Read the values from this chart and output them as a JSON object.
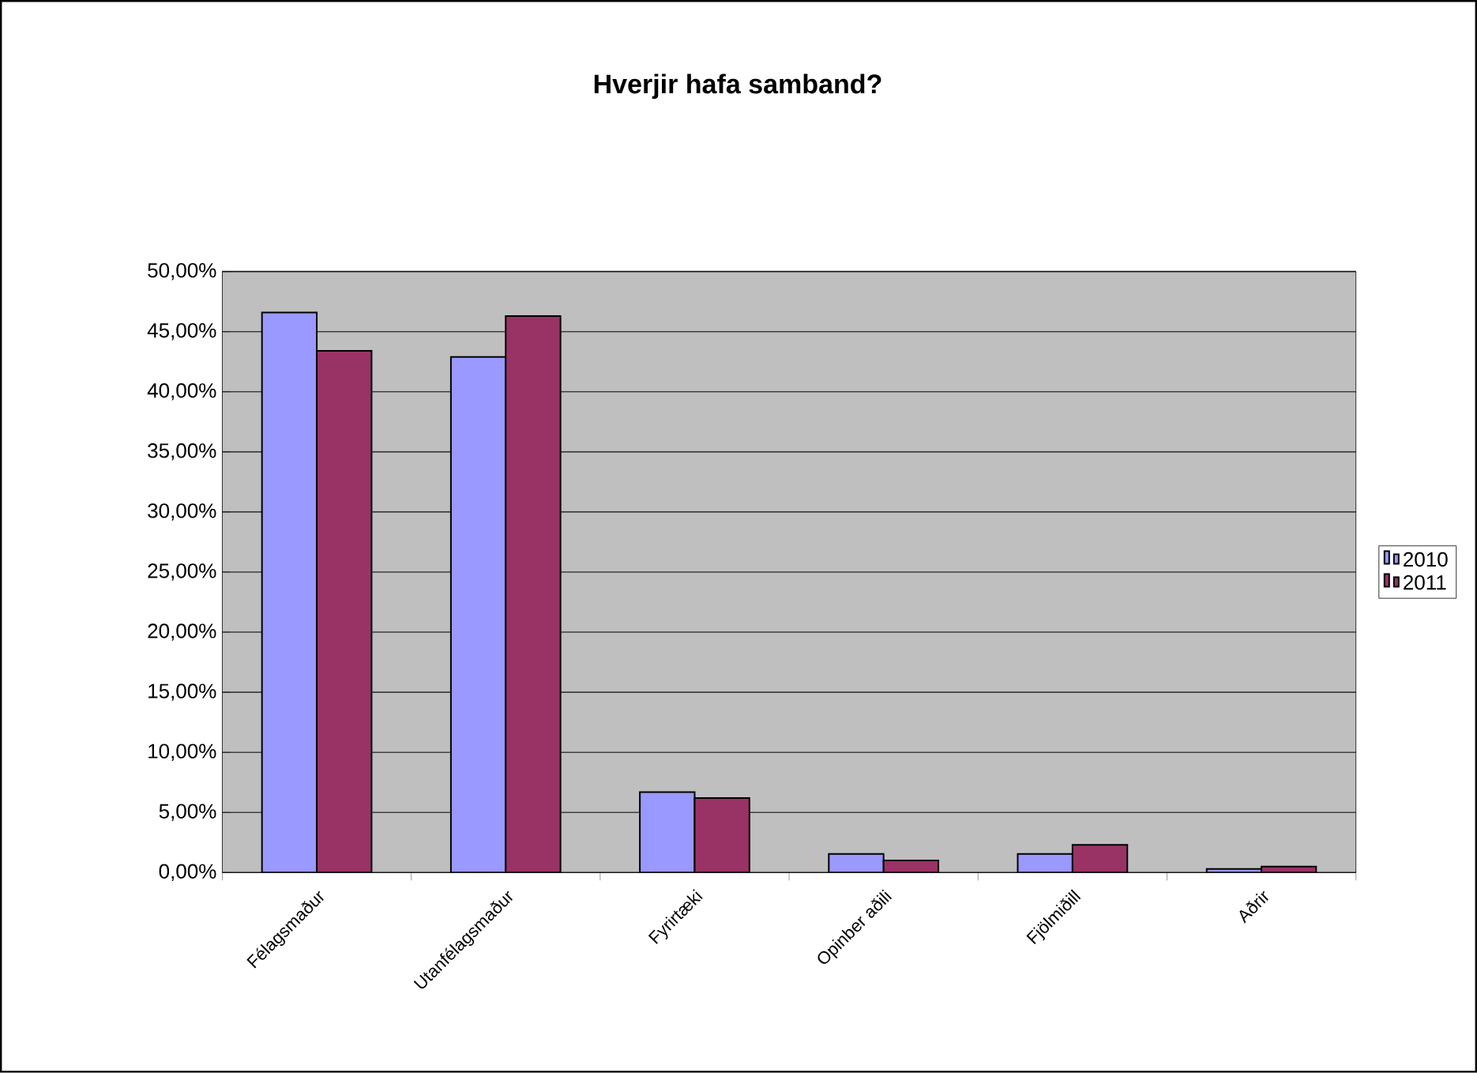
{
  "chart_data": {
    "type": "bar",
    "title": "Hverjir hafa samband?",
    "categories": [
      "Félagsmaður",
      "Utanfélagsmaður",
      "Fyrirtæki",
      "Opinber aðili",
      "Fjölmiðill",
      "Aðrir"
    ],
    "series": [
      {
        "name": "2010",
        "color": "#9999ff",
        "values": [
          46.6,
          42.9,
          6.7,
          1.55,
          1.55,
          0.3
        ]
      },
      {
        "name": "2011",
        "color": "#993366",
        "values": [
          43.4,
          46.3,
          6.2,
          1.0,
          2.3,
          0.5
        ]
      }
    ],
    "ylim": [
      0,
      50
    ],
    "yticks": [
      {
        "value": 0,
        "label": "0,00%"
      },
      {
        "value": 5,
        "label": "5,00%"
      },
      {
        "value": 10,
        "label": "10,00%"
      },
      {
        "value": 15,
        "label": "15,00%"
      },
      {
        "value": 20,
        "label": "20,00%"
      },
      {
        "value": 25,
        "label": "25,00%"
      },
      {
        "value": 30,
        "label": "30,00%"
      },
      {
        "value": 35,
        "label": "35,00%"
      },
      {
        "value": 40,
        "label": "40,00%"
      },
      {
        "value": 45,
        "label": "45,00%"
      },
      {
        "value": 50,
        "label": "50,00%"
      }
    ],
    "grid": "y",
    "legend": "right"
  }
}
